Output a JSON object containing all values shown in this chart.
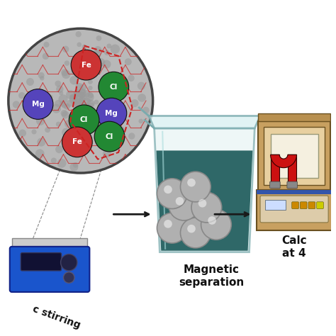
{
  "bg_color": "#ffffff",
  "arrow_color": "#1a1a1a",
  "beaker_liquid_color": "#1e5c5c",
  "beaker_glass_color": "#daeef0",
  "beaker_outline_color": "#7aabae",
  "circle_bg_color": "#b8b8b8",
  "circle_outline_color": "#555555",
  "particle_colors": {
    "Fe": "#cc3333",
    "Cl": "#228833",
    "Mg": "#5544bb"
  },
  "magnet_red": "#cc1111",
  "magnet_silver": "#888888",
  "stirrer_blue": "#1a55cc",
  "stirrer_body": "#1540aa",
  "furnace_tan": "#c8a060",
  "furnace_dark": "#6a5020",
  "furnace_blue_base": "#3355aa",
  "label_magnetic": "Magnetic\nseparation",
  "label_stirring": "c stirring",
  "label_calc": "Calc\nat 4",
  "hexagon_color": "#cc2222",
  "dashed_color": "#666666",
  "sphere_color": "#b0b0b0",
  "sphere_edge": "#888888",
  "text_color": "#111111",
  "font_size_labels": 10,
  "font_size_atoms": 7
}
